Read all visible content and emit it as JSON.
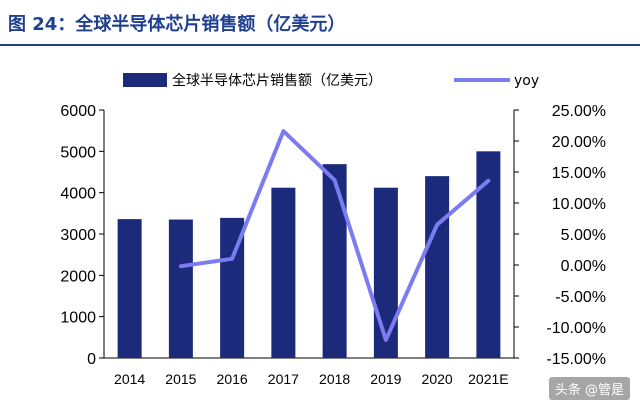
{
  "figure": {
    "title": "图 24：全球半导体芯片销售额（亿美元）"
  },
  "watermark": "头条 @管是",
  "colors": {
    "bar": "#1c2a7c",
    "line": "#7b7cf0",
    "title": "#1f3f8f"
  },
  "chart_data": {
    "type": "bar+line",
    "categories": [
      "2014",
      "2015",
      "2016",
      "2017",
      "2018",
      "2019",
      "2020",
      "2021E"
    ],
    "series": [
      {
        "name": "全球半导体芯片销售额（亿美元）",
        "type": "bar",
        "axis": "left",
        "values": [
          3360,
          3350,
          3390,
          4120,
          4690,
          4120,
          4400,
          5000
        ]
      },
      {
        "name": "yoy",
        "type": "line",
        "axis": "right",
        "values": [
          null,
          -0.2,
          1.0,
          21.6,
          13.7,
          -12.1,
          6.5,
          13.6
        ]
      }
    ],
    "y_left": {
      "ylim": [
        0,
        6000
      ],
      "ticks": [
        "0",
        "1000",
        "2000",
        "3000",
        "4000",
        "5000",
        "6000"
      ]
    },
    "y_right": {
      "ylim": [
        -15,
        25
      ],
      "ticks": [
        "-15.00%",
        "-10.00%",
        "-5.00%",
        "0.00%",
        "5.00%",
        "10.00%",
        "15.00%",
        "20.00%",
        "25.00%"
      ]
    },
    "legend_position": "top",
    "grid": false
  }
}
